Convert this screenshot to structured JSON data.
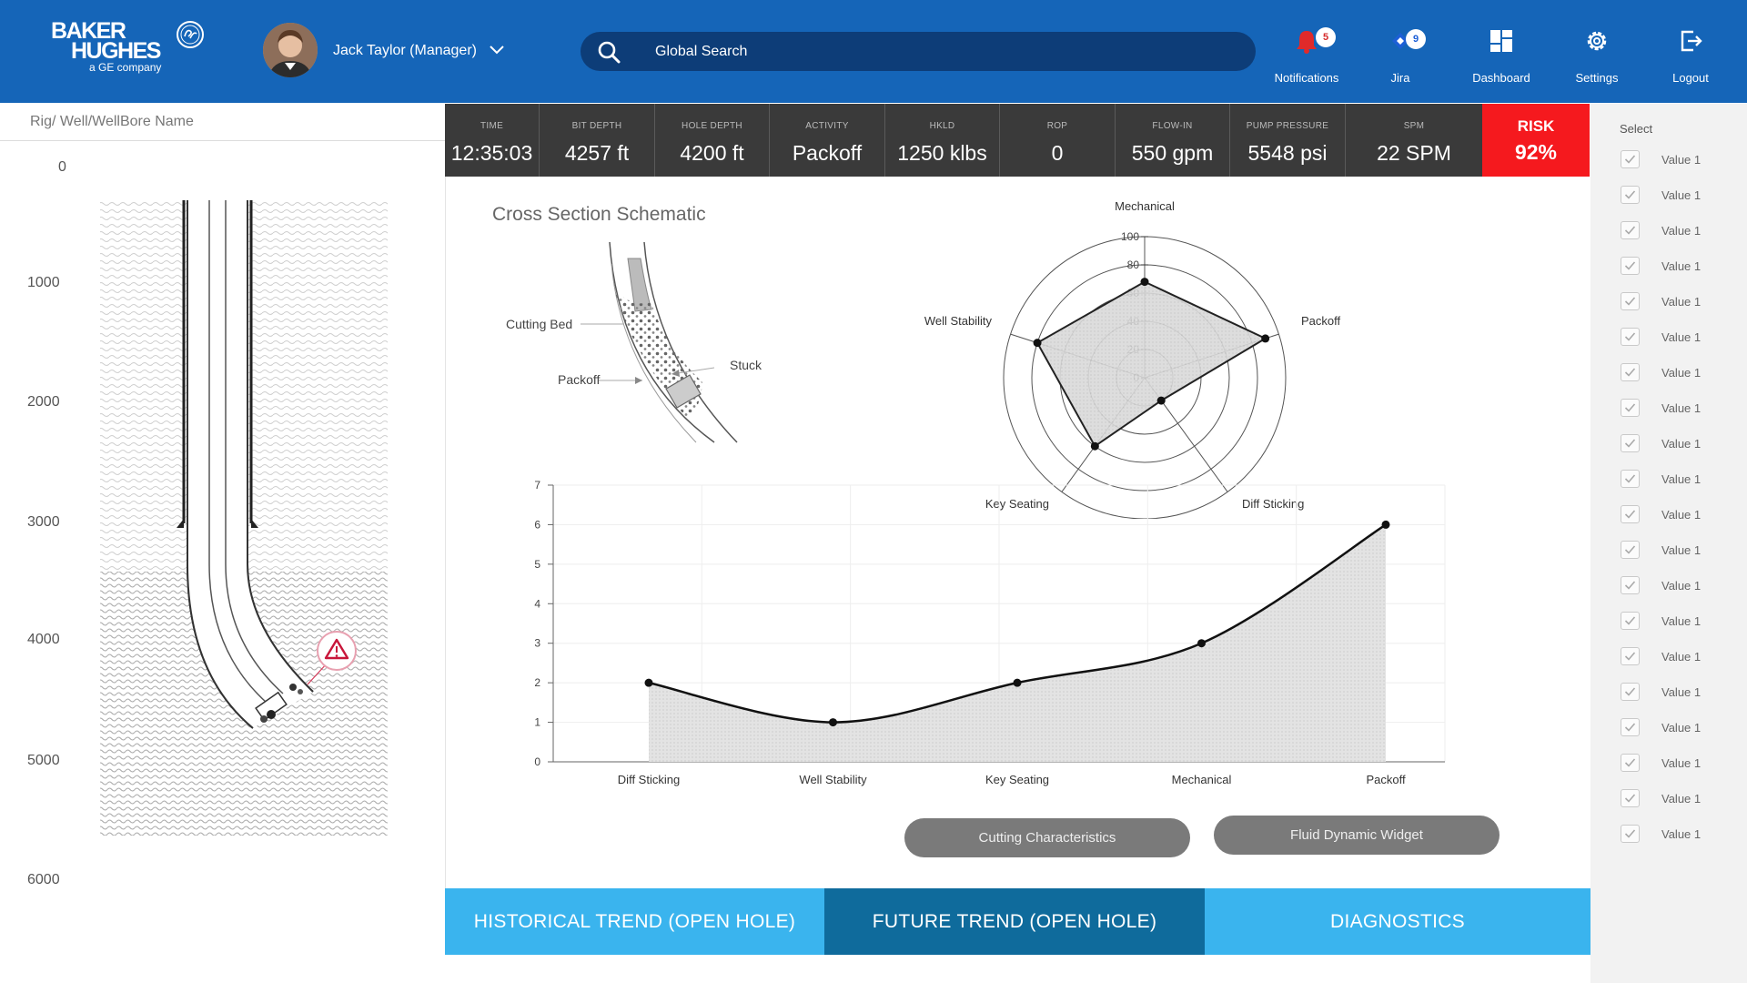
{
  "header": {
    "logo_line1": "BAKER",
    "logo_line2": "HUGHES",
    "logo_line3": "a GE company",
    "user_name": "Jack Taylor (Manager)",
    "search_placeholder": "Global Search",
    "nav": [
      {
        "label": "Notifications",
        "icon": "bell-icon",
        "badge": "5"
      },
      {
        "label": "Jira",
        "icon": "jira-icon",
        "badge": "9"
      },
      {
        "label": "Dashboard",
        "icon": "dashboard-icon"
      },
      {
        "label": "Settings",
        "icon": "gear-icon"
      },
      {
        "label": "Logout",
        "icon": "logout-icon"
      }
    ]
  },
  "left_panel": {
    "title": "Rig/ Well/WellBore Name",
    "depths": [
      "0",
      "1000",
      "2000",
      "3000",
      "4000",
      "5000",
      "6000"
    ],
    "alert_icon": "warning-icon"
  },
  "metrics": [
    {
      "label": "TIME",
      "value": "12:35:03"
    },
    {
      "label": "BIT DEPTH",
      "value": "4257 ft"
    },
    {
      "label": "HOLE DEPTH",
      "value": "4200 ft"
    },
    {
      "label": "ACTIVITY",
      "value": "Packoff"
    },
    {
      "label": "HKLD",
      "value": "1250 klbs"
    },
    {
      "label": "ROP",
      "value": "0"
    },
    {
      "label": "FLOW-IN",
      "value": "550 gpm"
    },
    {
      "label": "PUMP PRESSURE",
      "value": "5548 psi"
    },
    {
      "label": "SPM",
      "value": "22 SPM"
    }
  ],
  "risk": {
    "label": "RISK",
    "value": "92%",
    "color": "#f5191e"
  },
  "schematic": {
    "title": "Cross Section Schematic",
    "labels": [
      "Cutting Bed",
      "Packoff",
      "Stuck"
    ]
  },
  "buttons": {
    "cutting": "Cutting Characteristics",
    "fluid": "Fluid Dynamic Widget"
  },
  "tabs": [
    {
      "label": "HISTORICAL TREND (OPEN HOLE)",
      "color": "#3ab4ee"
    },
    {
      "label": "FUTURE TREND (OPEN HOLE)",
      "color": "#0f6b9c"
    },
    {
      "label": "DIAGNOSTICS",
      "color": "#3ab4ee"
    }
  ],
  "select_panel": {
    "label": "Select",
    "items": [
      "Value 1",
      "Value 1",
      "Value 1",
      "Value 1",
      "Value 1",
      "Value 1",
      "Value 1",
      "Value 1",
      "Value 1",
      "Value 1",
      "Value 1",
      "Value 1",
      "Value 1",
      "Value 1",
      "Value 1",
      "Value 1",
      "Value 1",
      "Value 1",
      "Value 1",
      "Value 1"
    ]
  },
  "chart_data": [
    {
      "type": "radar",
      "axes": [
        "Mechanical",
        "Packoff",
        "Diff Sticking",
        "Key Seating",
        "Well Stability"
      ],
      "values": [
        68,
        90,
        20,
        60,
        80
      ],
      "rlim": [
        0,
        100
      ],
      "ticks": [
        "0",
        "20",
        "40",
        "60",
        "80",
        "100"
      ]
    },
    {
      "type": "area",
      "categories": [
        "Diff Sticking",
        "Well Stability",
        "Key Seating",
        "Mechanical",
        "Packoff"
      ],
      "values": [
        2,
        1,
        2,
        3,
        6
      ],
      "ylim": [
        0,
        7
      ],
      "yticks": [
        "0",
        "1",
        "2",
        "3",
        "4",
        "5",
        "6",
        "7"
      ],
      "grid": true
    }
  ]
}
